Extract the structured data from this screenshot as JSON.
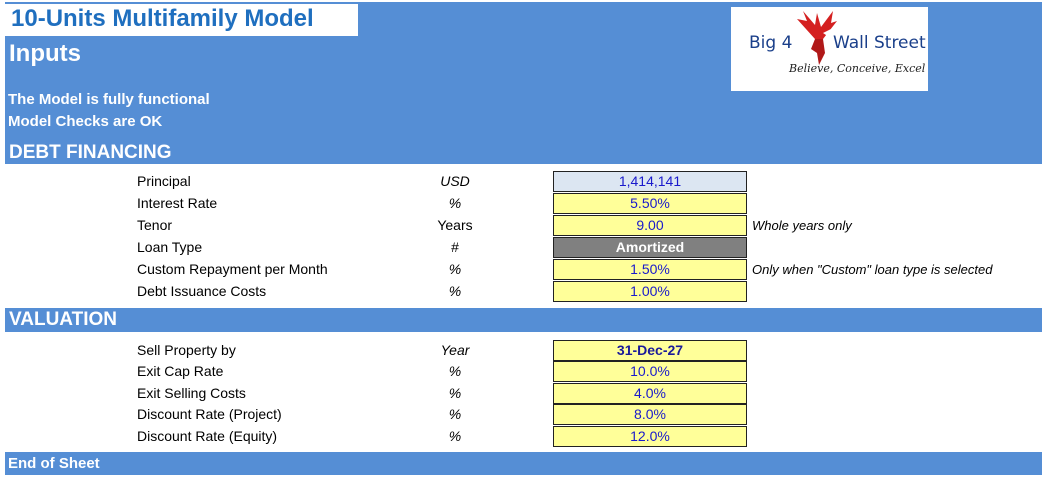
{
  "header": {
    "model_title": "10-Units Multifamily Model",
    "sheet_title": "Inputs",
    "status_lines": [
      "The Model is fully functional",
      "Model Checks are OK"
    ]
  },
  "logo": {
    "brand_left": "Big 4",
    "brand_right": "Wall Street",
    "tagline": "Believe, Conceive, Excel",
    "icon": "red-eagle-icon"
  },
  "debt": {
    "section_title": "DEBT FINANCING",
    "rows": [
      {
        "label": "Principal",
        "unit": "USD",
        "value": "1,414,141",
        "note": ""
      },
      {
        "label": "Interest Rate",
        "unit": "%",
        "value": "5.50%",
        "note": ""
      },
      {
        "label": "Tenor",
        "unit": "Years",
        "value": "9.00",
        "note": "Whole years only"
      },
      {
        "label": "Loan Type",
        "unit": "#",
        "value": "Amortized",
        "note": ""
      },
      {
        "label": "Custom Repayment per Month",
        "unit": "%",
        "value": "1.50%",
        "note": "Only when \"Custom\" loan type is selected"
      },
      {
        "label": "Debt Issuance Costs",
        "unit": "%",
        "value": "1.00%",
        "note": ""
      }
    ]
  },
  "valuation": {
    "section_title": "VALUATION",
    "rows": [
      {
        "label": "Sell Property by",
        "unit": "Year",
        "value": "31-Dec-27"
      },
      {
        "label": "Exit Cap Rate",
        "unit": "%",
        "value": "10.0%"
      },
      {
        "label": "Exit Selling Costs",
        "unit": "%",
        "value": "4.0%"
      },
      {
        "label": "Discount Rate (Project)",
        "unit": "%",
        "value": "8.0%"
      },
      {
        "label": "Discount Rate (Equity)",
        "unit": "%",
        "value": "12.0%"
      }
    ]
  },
  "footer": {
    "end_label": "End of Sheet"
  },
  "colors": {
    "band": "#558ed5",
    "title_text": "#1f6fbf",
    "input_cell": "#ffff99",
    "calc_cell": "#dce6f2",
    "dropdown_cell": "#808080",
    "input_text": "#1a1acc"
  }
}
